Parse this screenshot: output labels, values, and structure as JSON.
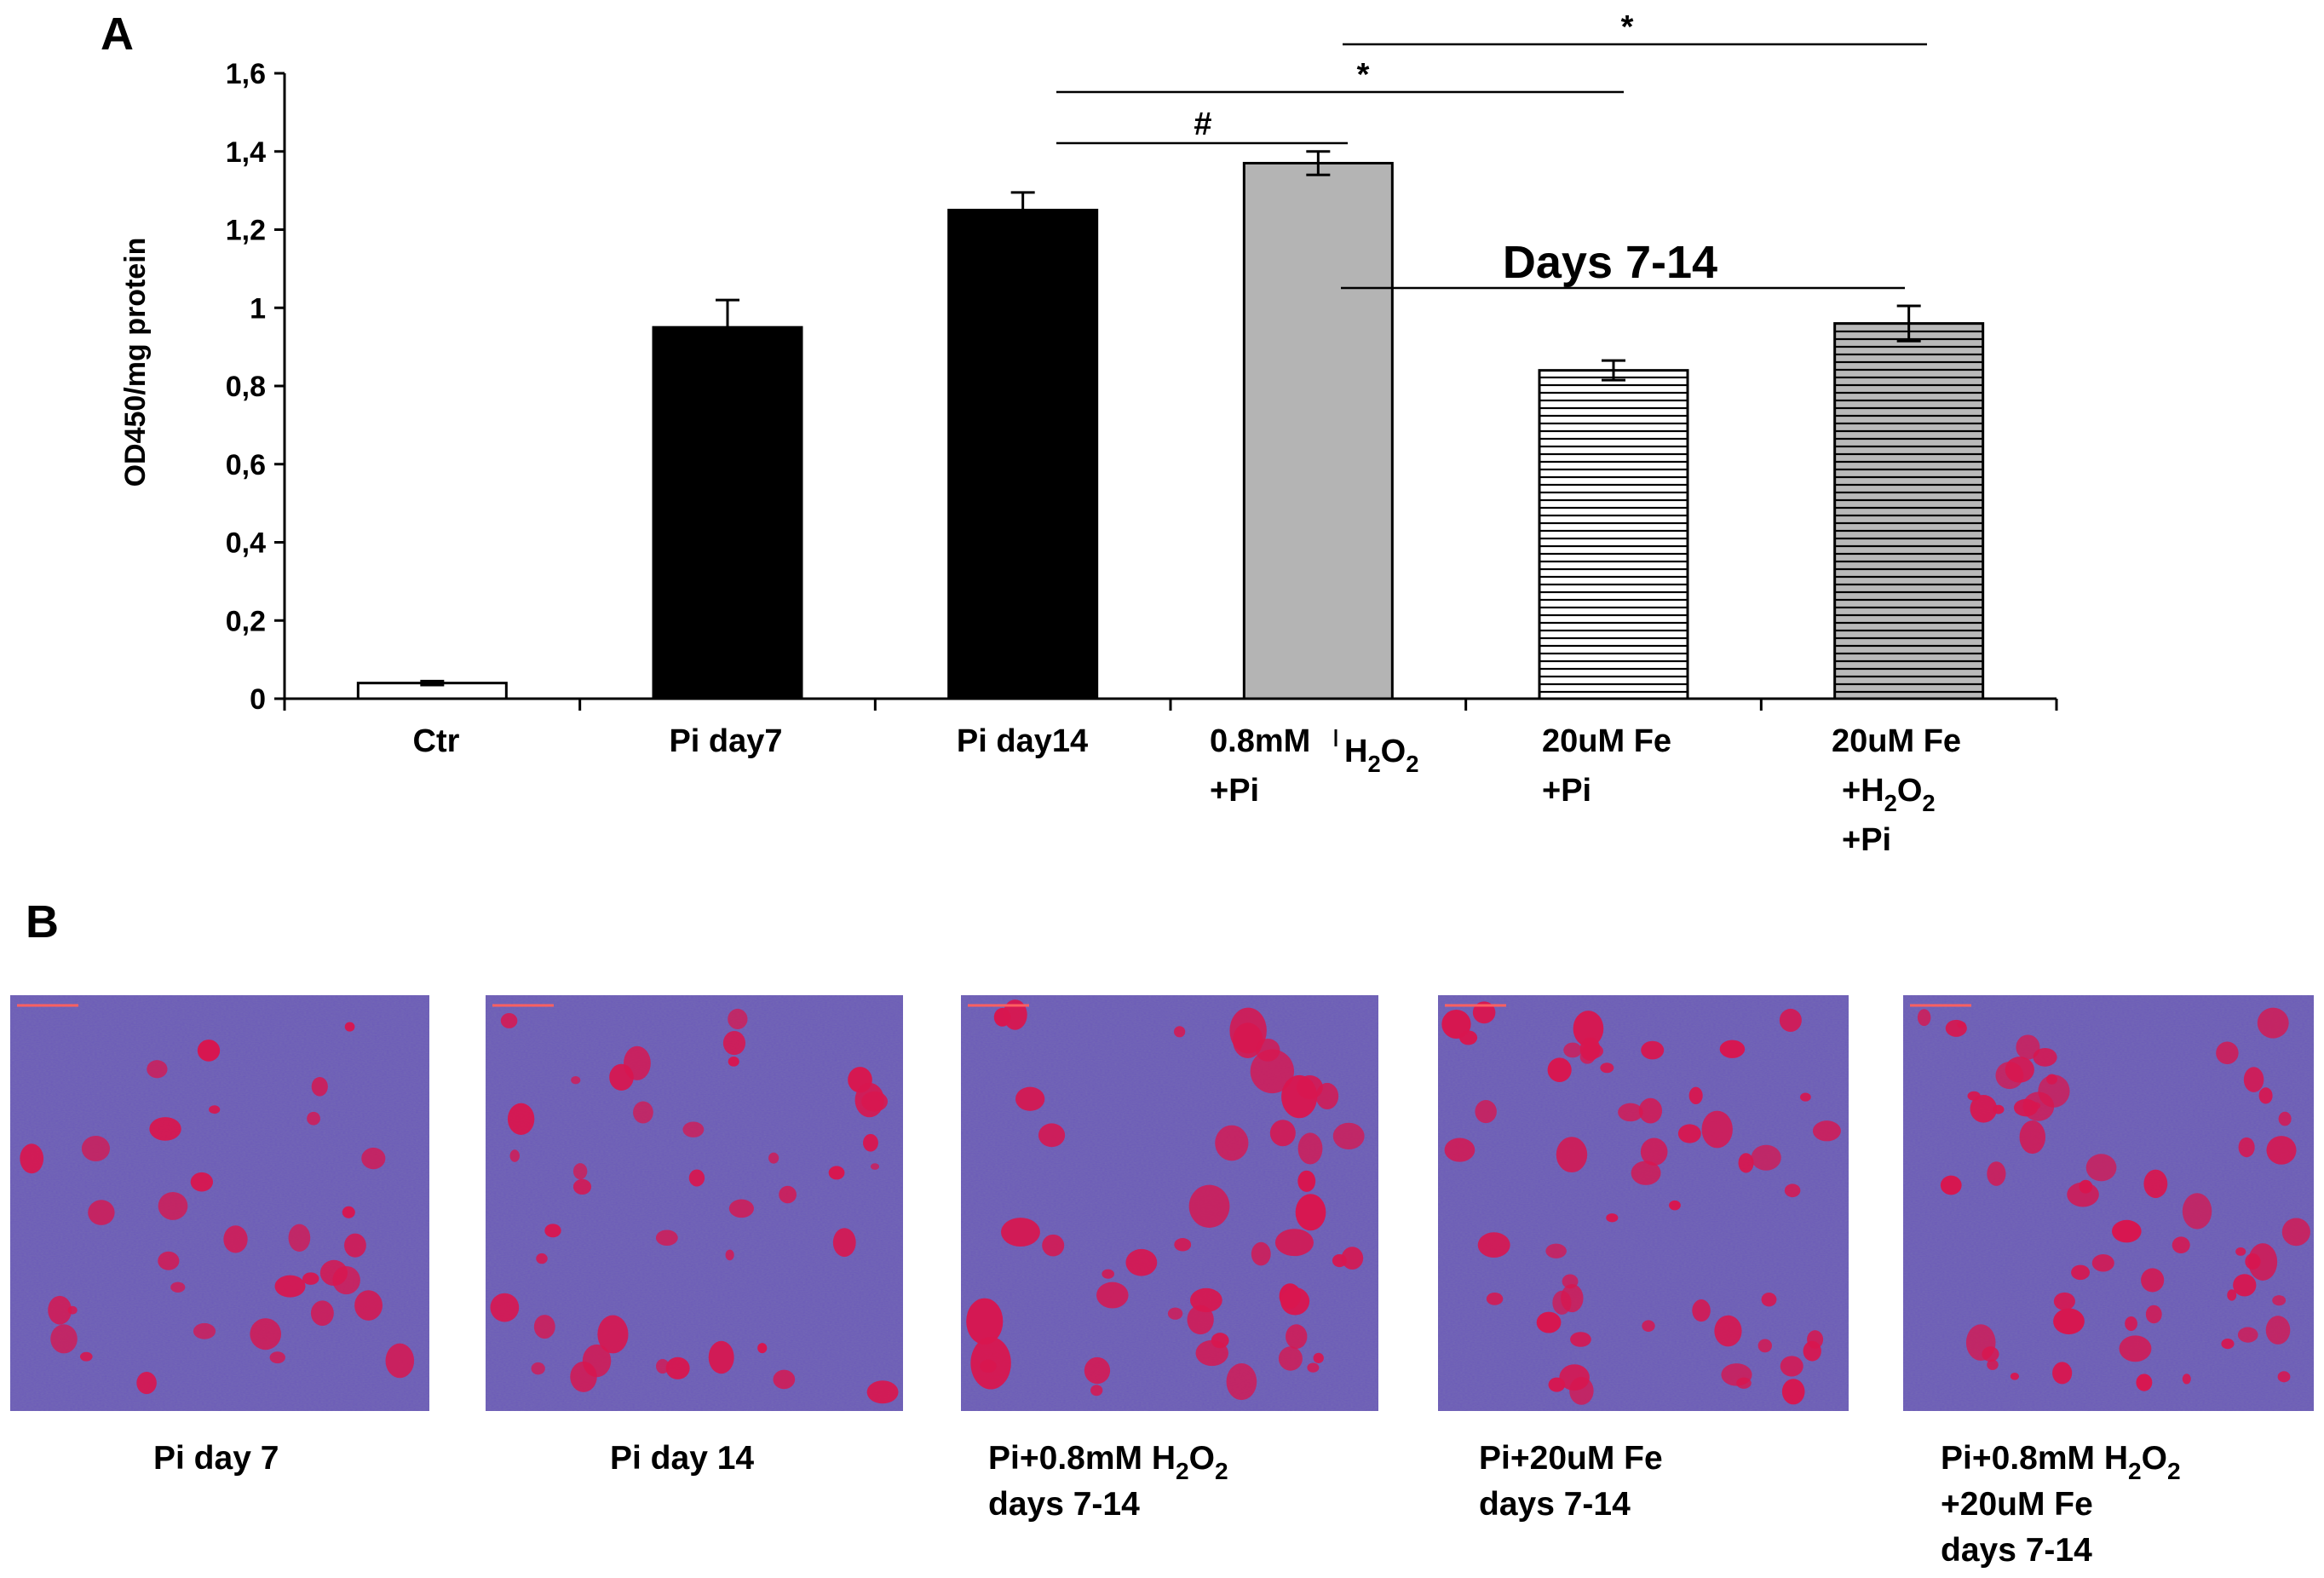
{
  "panel_a": {
    "letter": "A"
  },
  "panel_b": {
    "letter": "B"
  },
  "chart_data": {
    "type": "bar",
    "ylabel": "OD450/mg protein",
    "ylim": [
      0,
      1.6
    ],
    "yticks": [
      "0",
      "0,2",
      "0,4",
      "0,6",
      "0,8",
      "1",
      "1,2",
      "1,4",
      "1,6"
    ],
    "categories": [
      {
        "lines": [
          {
            "t": "Ctr"
          }
        ]
      },
      {
        "lines": [
          {
            "t": "Pi day7"
          }
        ]
      },
      {
        "lines": [
          {
            "t": "Pi day14"
          }
        ]
      },
      {
        "lines": [
          {
            "t": "0.8mM "
          },
          {
            "t": "+Pi"
          }
        ]
      },
      {
        "lines": [
          {
            "t": "20uM Fe"
          },
          {
            "t": "+Pi"
          }
        ]
      },
      {
        "lines": [
          {
            "t": "20uM Fe"
          },
          {
            "t": "+H",
            "sub": "2",
            "after": "O",
            "sub2": "2"
          },
          {
            "t": "+Pi"
          }
        ]
      }
    ],
    "values": [
      0.04,
      0.95,
      1.25,
      1.37,
      0.84,
      0.96
    ],
    "errors": [
      0.005,
      0.07,
      0.045,
      0.03,
      0.025,
      0.045
    ],
    "fills": [
      "#ffffff",
      "#000000",
      "#000000",
      "#b4b4b4",
      "striped-white",
      "striped-gray"
    ],
    "overlap_label": {
      "pre": "H",
      "sub": "2",
      "mid": "O",
      "sub2": "2"
    },
    "significance": [
      {
        "symbol": "#",
        "from": 2,
        "to": 3
      },
      {
        "symbol": "*",
        "from": 2,
        "to": 4
      },
      {
        "symbol": "*",
        "from": 3,
        "to": 5
      }
    ],
    "bracket_label": "Days 7-14",
    "grid": false,
    "legend": "none"
  },
  "micrographs": [
    {
      "caption": [
        {
          "t": "Pi day 7"
        }
      ]
    },
    {
      "caption": [
        {
          "t": "Pi day 14"
        }
      ]
    },
    {
      "caption": [
        {
          "t": "Pi+0.8mM H",
          "sub": "2",
          "after": "O",
          "sub2": "2"
        },
        {
          "t": "days 7-14"
        }
      ]
    },
    {
      "caption": [
        {
          "t": "Pi+20uM Fe"
        },
        {
          "t": "days 7-14"
        }
      ]
    },
    {
      "caption": [
        {
          "t": "Pi+0.8mM H",
          "sub": "2",
          "after": "O",
          "sub2": "2"
        },
        {
          "t": "+20uM Fe"
        },
        {
          "t": "days 7-14"
        }
      ]
    }
  ],
  "colors": {
    "stain_bg": "#6b5ab8",
    "nodule": "#d8164f",
    "bar_gray": "#b4b4b4"
  }
}
